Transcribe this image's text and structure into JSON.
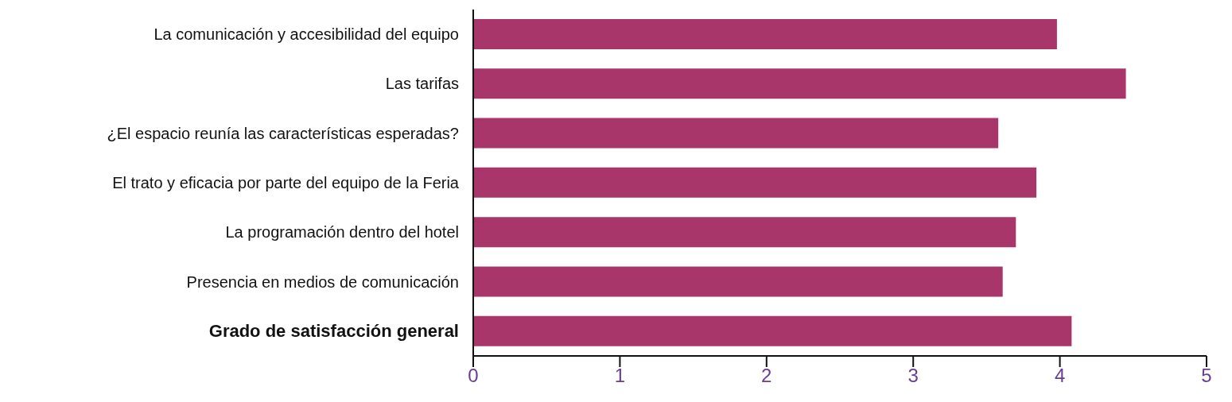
{
  "chart_data": {
    "type": "bar",
    "orientation": "horizontal",
    "categories": [
      "La comunicación y accesibilidad del equipo",
      "Las tarifas",
      "¿El espacio reunía las características esperadas?",
      "El trato y eficacia por parte del equipo de la Feria",
      "La programación dentro del hotel",
      "Presencia en medios de comunicación",
      "Grado de satisfacción general"
    ],
    "values": [
      3.98,
      4.45,
      3.58,
      3.84,
      3.7,
      3.61,
      4.08
    ],
    "color": "#a8366a",
    "xlim": [
      0,
      5
    ],
    "xticks": [
      0,
      1,
      2,
      3,
      4,
      5
    ],
    "grid": false,
    "legend": false
  }
}
